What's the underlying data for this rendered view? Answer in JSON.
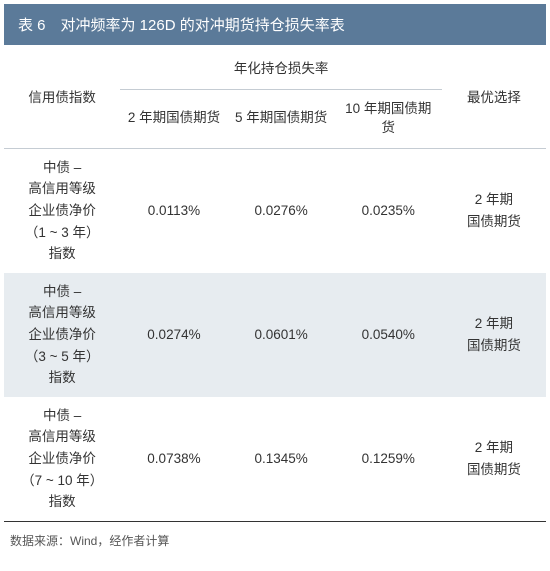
{
  "table": {
    "title": "表 6　对冲频率为 126D 的对冲期货持仓损失率表",
    "columns": {
      "index_label": "信用债指数",
      "merged_header": "年化持仓损失率",
      "sub_headers": [
        "2 年期国债期货",
        "5 年期国债期货",
        "10 年期国债期货"
      ],
      "best_label": "最优选择"
    },
    "rows": [
      {
        "index": "中债 –<br>高信用等级<br>企业债净价<br>（1 ~ 3 年）<br>指数",
        "rate_2y": "0.0113%",
        "rate_5y": "0.0276%",
        "rate_10y": "0.0235%",
        "best": "2 年期<br>国债期货"
      },
      {
        "index": "中债 –<br>高信用等级<br>企业债净价<br>（3 ~ 5 年）<br>指数",
        "rate_2y": "0.0274%",
        "rate_5y": "0.0601%",
        "rate_10y": "0.0540%",
        "best": "2 年期<br>国债期货"
      },
      {
        "index": "中债 –<br>高信用等级<br>企业债净价<br>（7 ~ 10 年）<br>指数",
        "rate_2y": "0.0738%",
        "rate_5y": "0.1345%",
        "rate_10y": "0.1259%",
        "best": "2 年期<br>国债期货"
      }
    ],
    "source": "数据来源：Wind，经作者计算"
  },
  "styling": {
    "title_bg": "#5b7a99",
    "title_color": "#ffffff",
    "title_fontsize": 15,
    "body_fontsize": 13.5,
    "border_color": "#c5ccd3",
    "row_even_bg": "#e7ecf0",
    "row_odd_bg": "#ffffff",
    "source_fontsize": 12,
    "source_color": "#555555",
    "bottom_border_color": "#333333"
  }
}
